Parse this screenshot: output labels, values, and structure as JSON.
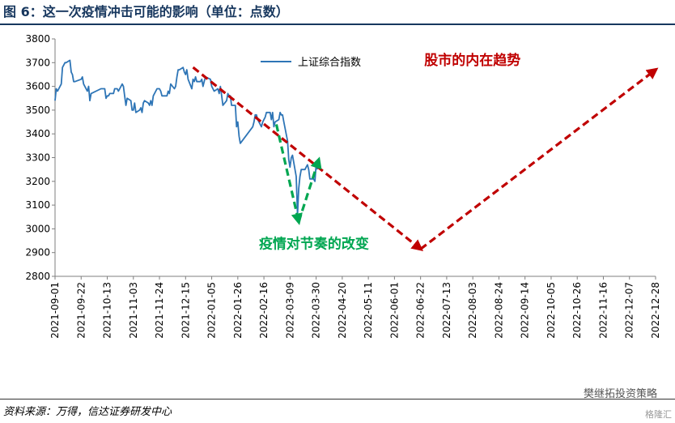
{
  "title": "图 6：这一次疫情冲击可能的影响（单位：点数）",
  "source": "资料来源：万得，信达证券研发中心",
  "wechat_label": "樊继拓投资策略",
  "watermark": "格隆汇",
  "colors": {
    "title": "#17375e",
    "series": "#2e75b6",
    "market_trend": "#c00000",
    "covid_impact": "#00a651"
  },
  "chart_data": {
    "type": "line",
    "ylim": [
      2800,
      3800
    ],
    "yticks": [
      2800,
      2900,
      3000,
      3100,
      3200,
      3300,
      3400,
      3500,
      3600,
      3700,
      3800
    ],
    "xlim": [
      "2021-09-01",
      "2022-12-28"
    ],
    "xtick_labels": [
      "2021-09-01",
      "2021-09-22",
      "2021-10-13",
      "2021-11-03",
      "2021-11-24",
      "2021-12-15",
      "2022-01-05",
      "2022-01-26",
      "2022-02-16",
      "2022-03-09",
      "2022-03-30",
      "2022-04-20",
      "2022-05-11",
      "2022-06-01",
      "2022-06-22",
      "2022-07-13",
      "2022-08-03",
      "2022-08-24",
      "2022-09-14",
      "2022-10-05",
      "2022-10-26",
      "2022-11-16",
      "2022-12-07",
      "2022-12-28"
    ],
    "legend": "top-left",
    "series": [
      {
        "name": "上证综合指数",
        "color": "#2e75b6",
        "points": [
          [
            "2021-09-01",
            3540
          ],
          [
            "2021-09-02",
            3590
          ],
          [
            "2021-09-03",
            3580
          ],
          [
            "2021-09-06",
            3610
          ],
          [
            "2021-09-07",
            3680
          ],
          [
            "2021-09-08",
            3690
          ],
          [
            "2021-09-09",
            3700
          ],
          [
            "2021-09-10",
            3700
          ],
          [
            "2021-09-13",
            3710
          ],
          [
            "2021-09-14",
            3660
          ],
          [
            "2021-09-15",
            3650
          ],
          [
            "2021-09-16",
            3620
          ],
          [
            "2021-09-17",
            3620
          ],
          [
            "2021-09-22",
            3630
          ],
          [
            "2021-09-23",
            3640
          ],
          [
            "2021-09-24",
            3610
          ],
          [
            "2021-09-27",
            3580
          ],
          [
            "2021-09-28",
            3600
          ],
          [
            "2021-09-29",
            3540
          ],
          [
            "2021-09-30",
            3570
          ],
          [
            "2021-10-08",
            3590
          ],
          [
            "2021-10-11",
            3590
          ],
          [
            "2021-10-12",
            3550
          ],
          [
            "2021-10-13",
            3560
          ],
          [
            "2021-10-14",
            3560
          ],
          [
            "2021-10-15",
            3570
          ],
          [
            "2021-10-18",
            3570
          ],
          [
            "2021-10-19",
            3590
          ],
          [
            "2021-10-20",
            3590
          ],
          [
            "2021-10-21",
            3590
          ],
          [
            "2021-10-22",
            3580
          ],
          [
            "2021-10-25",
            3610
          ],
          [
            "2021-10-26",
            3600
          ],
          [
            "2021-10-27",
            3560
          ],
          [
            "2021-10-28",
            3520
          ],
          [
            "2021-10-29",
            3550
          ],
          [
            "2021-11-01",
            3540
          ],
          [
            "2021-11-02",
            3500
          ],
          [
            "2021-11-03",
            3500
          ],
          [
            "2021-11-04",
            3530
          ],
          [
            "2021-11-05",
            3490
          ],
          [
            "2021-11-08",
            3500
          ],
          [
            "2021-11-09",
            3510
          ],
          [
            "2021-11-10",
            3490
          ],
          [
            "2021-11-11",
            3530
          ],
          [
            "2021-11-12",
            3540
          ],
          [
            "2021-11-15",
            3530
          ],
          [
            "2021-11-16",
            3520
          ],
          [
            "2021-11-17",
            3540
          ],
          [
            "2021-11-18",
            3520
          ],
          [
            "2021-11-19",
            3560
          ],
          [
            "2021-11-22",
            3590
          ],
          [
            "2021-11-23",
            3590
          ],
          [
            "2021-11-24",
            3590
          ],
          [
            "2021-11-25",
            3580
          ],
          [
            "2021-11-26",
            3560
          ],
          [
            "2021-11-29",
            3560
          ],
          [
            "2021-11-30",
            3560
          ],
          [
            "2021-12-01",
            3580
          ],
          [
            "2021-12-02",
            3570
          ],
          [
            "2021-12-03",
            3610
          ],
          [
            "2021-12-06",
            3590
          ],
          [
            "2021-12-07",
            3600
          ],
          [
            "2021-12-08",
            3640
          ],
          [
            "2021-12-09",
            3670
          ],
          [
            "2021-12-10",
            3670
          ],
          [
            "2021-12-13",
            3680
          ],
          [
            "2021-12-14",
            3660
          ],
          [
            "2021-12-15",
            3650
          ],
          [
            "2021-12-16",
            3670
          ],
          [
            "2021-12-17",
            3630
          ],
          [
            "2021-12-20",
            3590
          ],
          [
            "2021-12-21",
            3630
          ],
          [
            "2021-12-22",
            3620
          ],
          [
            "2021-12-23",
            3640
          ],
          [
            "2021-12-24",
            3620
          ],
          [
            "2021-12-27",
            3620
          ],
          [
            "2021-12-28",
            3630
          ],
          [
            "2021-12-29",
            3600
          ],
          [
            "2021-12-30",
            3620
          ],
          [
            "2021-12-31",
            3640
          ],
          [
            "2022-01-04",
            3630
          ],
          [
            "2022-01-05",
            3600
          ],
          [
            "2022-01-06",
            3590
          ],
          [
            "2022-01-07",
            3580
          ],
          [
            "2022-01-10",
            3590
          ],
          [
            "2022-01-11",
            3570
          ],
          [
            "2022-01-12",
            3600
          ],
          [
            "2022-01-13",
            3560
          ],
          [
            "2022-01-14",
            3520
          ],
          [
            "2022-01-17",
            3540
          ],
          [
            "2022-01-18",
            3570
          ],
          [
            "2022-01-19",
            3560
          ],
          [
            "2022-01-20",
            3560
          ],
          [
            "2022-01-21",
            3520
          ],
          [
            "2022-01-24",
            3520
          ],
          [
            "2022-01-25",
            3430
          ],
          [
            "2022-01-26",
            3450
          ],
          [
            "2022-01-27",
            3390
          ],
          [
            "2022-01-28",
            3360
          ],
          [
            "2022-02-07",
            3430
          ],
          [
            "2022-02-08",
            3450
          ],
          [
            "2022-02-09",
            3480
          ],
          [
            "2022-02-10",
            3480
          ],
          [
            "2022-02-11",
            3460
          ],
          [
            "2022-02-14",
            3430
          ],
          [
            "2022-02-15",
            3450
          ],
          [
            "2022-02-16",
            3460
          ],
          [
            "2022-02-17",
            3470
          ],
          [
            "2022-02-18",
            3490
          ],
          [
            "2022-02-21",
            3490
          ],
          [
            "2022-02-22",
            3460
          ],
          [
            "2022-02-23",
            3490
          ],
          [
            "2022-02-24",
            3430
          ],
          [
            "2022-02-25",
            3450
          ],
          [
            "2022-02-28",
            3460
          ],
          [
            "2022-03-01",
            3490
          ],
          [
            "2022-03-02",
            3480
          ],
          [
            "2022-03-03",
            3480
          ],
          [
            "2022-03-04",
            3450
          ],
          [
            "2022-03-07",
            3370
          ],
          [
            "2022-03-08",
            3290
          ],
          [
            "2022-03-09",
            3260
          ],
          [
            "2022-03-10",
            3300
          ],
          [
            "2022-03-11",
            3310
          ],
          [
            "2022-03-14",
            3220
          ],
          [
            "2022-03-15",
            3060
          ],
          [
            "2022-03-16",
            3170
          ],
          [
            "2022-03-17",
            3220
          ],
          [
            "2022-03-18",
            3250
          ],
          [
            "2022-03-21",
            3250
          ],
          [
            "2022-03-22",
            3260
          ],
          [
            "2022-03-23",
            3270
          ],
          [
            "2022-03-24",
            3250
          ],
          [
            "2022-03-25",
            3210
          ],
          [
            "2022-03-28",
            3210
          ],
          [
            "2022-03-29",
            3200
          ],
          [
            "2022-03-30",
            3270
          ],
          [
            "2022-03-31",
            3250
          ]
        ]
      }
    ],
    "annotations": [
      {
        "kind": "arrow-path",
        "color": "#c00000",
        "points": [
          [
            "2021-12-21",
            3680
          ],
          [
            "2022-06-22",
            2915
          ],
          [
            "2022-12-28",
            3670
          ]
        ]
      },
      {
        "kind": "text",
        "text": "股市的内在趋势",
        "color": "#c00000",
        "at": [
          "2022-06-25",
          3690
        ]
      },
      {
        "kind": "arrow-path",
        "color": "#00a651",
        "points": [
          [
            "2022-02-26",
            3440
          ],
          [
            "2022-03-16",
            3030
          ],
          [
            "2022-04-01",
            3290
          ]
        ]
      },
      {
        "kind": "text",
        "text": "疫情对节奏的改变",
        "color": "#00a651",
        "at": [
          "2022-02-12",
          2918
        ]
      }
    ]
  }
}
